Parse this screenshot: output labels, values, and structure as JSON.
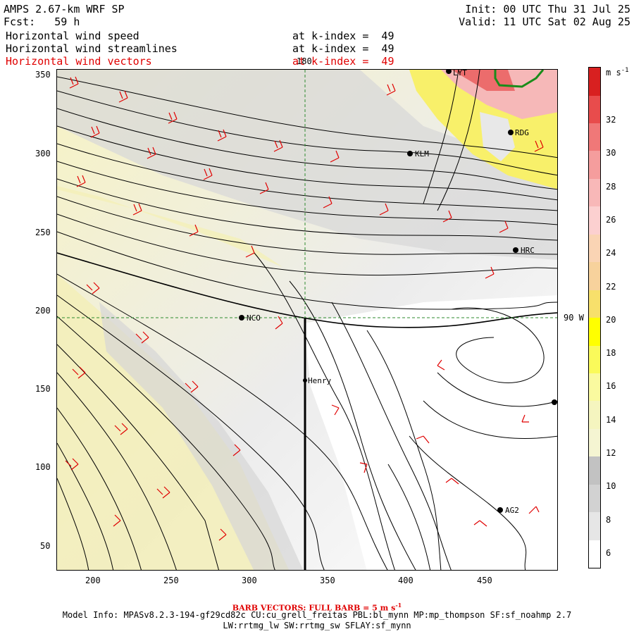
{
  "header": {
    "model_title": "AMPS 2.67-km WRF SP",
    "init_time": "Init: 00 UTC Thu 31 Jul 25",
    "forecast": "Fcst:   59 h",
    "valid_time": "Valid: 11 UTC Sat 02 Aug 25",
    "fields": [
      {
        "name": "Horizontal wind speed",
        "level": "at k-index =  49",
        "color": "#000000"
      },
      {
        "name": "Horizontal wind streamlines",
        "level": "at k-index =  49",
        "color": "#000000"
      },
      {
        "name": "Horizontal wind vectors",
        "level": "at k-index =  49",
        "color": "#e00000"
      }
    ]
  },
  "map": {
    "x_ticks": [
      "200",
      "250",
      "300",
      "350",
      "400",
      "450"
    ],
    "y_ticks": [
      "350",
      "300",
      "250",
      "200",
      "150",
      "100",
      "50"
    ],
    "meridian_label": "180",
    "parallel_label": "90 W",
    "stations": [
      {
        "id": "LYT",
        "label": "LYT"
      },
      {
        "id": "RDG",
        "label": "RDG"
      },
      {
        "id": "KLM",
        "label": "KLM"
      },
      {
        "id": "HRC",
        "label": "HRC"
      },
      {
        "id": "NCO",
        "label": "NCO"
      },
      {
        "id": "Henry",
        "label": "Henry"
      },
      {
        "id": "AG2",
        "label": "AG2"
      }
    ],
    "colors": {
      "barb": "#e00000",
      "streamline": "#000000",
      "grid": "#2e8b2e",
      "coast": "#1a8c1a"
    }
  },
  "colorbar": {
    "unit_label": "m s",
    "unit_exp": "-1",
    "labels": [
      "32",
      "30",
      "28",
      "26",
      "24",
      "22",
      "20",
      "18",
      "16",
      "14",
      "12",
      "10",
      "8",
      "6"
    ],
    "colors": [
      "#ffffff",
      "#e6e6e6",
      "#d2d2d2",
      "#c2c2c2",
      "#f5f5d2",
      "#f5f5bf",
      "#fafa9f",
      "#fafa5a",
      "#ffff00",
      "#f7e06b",
      "#f7d29c",
      "#fad4b4",
      "#fcd0d0",
      "#f8b8b8",
      "#f59d9d",
      "#f07878",
      "#e84c4c",
      "#d82020"
    ]
  },
  "footer": {
    "barb_note": "BARB VECTORS: FULL BARB = 5 m s",
    "barb_exp": "-1",
    "model_info_1": "Model Info: MPASv8.2.3-194-gf29cd82c CU:cu_grell_freitas PBL:bl_mynn MP:mp_thompson SF:sf_noahmp 2.7",
    "model_info_2": "LW:rrtmg_lw SW:rrtmg_sw SFLAY:sf_mynn"
  }
}
